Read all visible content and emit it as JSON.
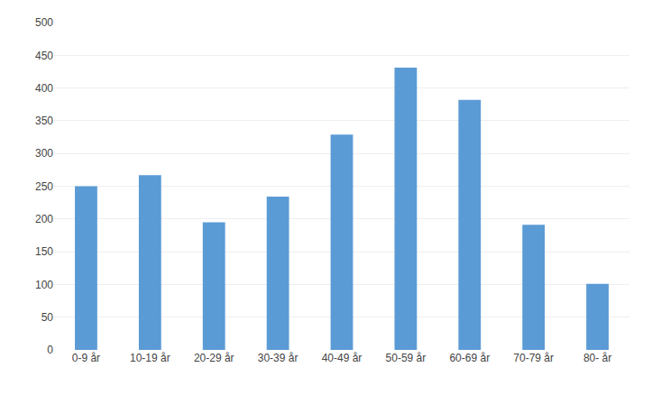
{
  "chart_data": {
    "type": "bar",
    "categories": [
      "0-9 år",
      "10-19 år",
      "20-29 år",
      "30-39 år",
      "40-49 år",
      "50-59 år",
      "60-69 år",
      "70-79 år",
      "80- år"
    ],
    "values": [
      250,
      267,
      195,
      234,
      329,
      431,
      382,
      191,
      101
    ],
    "color": "#5B9BD5",
    "ylim": [
      0,
      500
    ],
    "yticks": [
      0,
      50,
      100,
      150,
      200,
      250,
      300,
      350,
      400,
      450,
      500
    ],
    "grid": true
  }
}
